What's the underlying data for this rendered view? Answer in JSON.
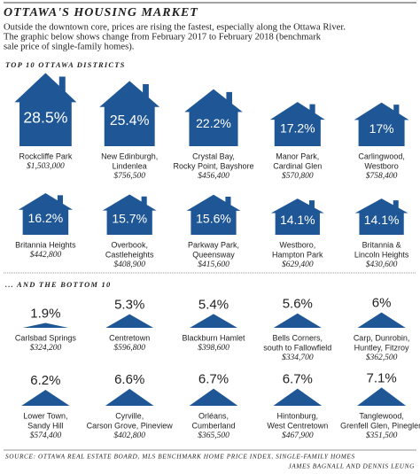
{
  "header": {
    "title": "OTTAWA'S HOUSING MARKET",
    "subtitle_lines": [
      "Outside the downtown core, prices are rising the fastest, especially along the Ottawa River.",
      "The graphic below shows change from February 2017 to February 2018 (benchmark",
      "sale price of single-family homes)."
    ]
  },
  "groups": [
    {
      "label": "TOP 10 OTTAWA DISTRICTS",
      "districts": [
        {
          "name_lines": [
            "Rockcliffe Park"
          ],
          "price": "$1,503,000",
          "value": 28.5,
          "value_label": "28.5%"
        },
        {
          "name_lines": [
            "New Edinburgh,",
            "Lindenlea"
          ],
          "price": "$756,500",
          "value": 25.4,
          "value_label": "25.4%"
        },
        {
          "name_lines": [
            "Crystal Bay,",
            "Rocky Point, Bayshore"
          ],
          "price": "$456,400",
          "value": 22.2,
          "value_label": "22.2%"
        },
        {
          "name_lines": [
            "Manor Park,",
            "Cardinal Glen"
          ],
          "price": "$570,800",
          "value": 17.2,
          "value_label": "17.2%"
        },
        {
          "name_lines": [
            "Carlingwood,",
            "Westboro"
          ],
          "price": "$758,400",
          "value": 17,
          "value_label": "17%"
        },
        {
          "name_lines": [
            "Britannia Heights"
          ],
          "price": "$442,800",
          "value": 16.2,
          "value_label": "16.2%"
        },
        {
          "name_lines": [
            "Overbook,",
            "Castleheights"
          ],
          "price": "$408,900",
          "value": 15.7,
          "value_label": "15.7%"
        },
        {
          "name_lines": [
            "Parkway Park,",
            "Queensway"
          ],
          "price": "$415,600",
          "value": 15.6,
          "value_label": "15.6%"
        },
        {
          "name_lines": [
            "Westboro,",
            "Hampton Park"
          ],
          "price": "$629,400",
          "value": 14.1,
          "value_label": "14.1%"
        },
        {
          "name_lines": [
            "Britannia &",
            "Lincoln Heights"
          ],
          "price": "$430,600",
          "value": 14.1,
          "value_label": "14.1%"
        }
      ]
    },
    {
      "label": "... AND THE BOTTOM 10",
      "districts": [
        {
          "name_lines": [
            "Carlsbad Springs"
          ],
          "price": "$324,200",
          "value": 1.9,
          "value_label": "1.9%"
        },
        {
          "name_lines": [
            "Centretown"
          ],
          "price": "$596,800",
          "value": 5.3,
          "value_label": "5.3%"
        },
        {
          "name_lines": [
            "Blackburn Hamlet"
          ],
          "price": "$398,600",
          "value": 5.4,
          "value_label": "5.4%"
        },
        {
          "name_lines": [
            "Bells Corners,",
            "south to Fallowfield"
          ],
          "price": "$334,700",
          "value": 5.6,
          "value_label": "5.6%"
        },
        {
          "name_lines": [
            "Carp, Dunrobin,",
            "Huntley, Fitzroy"
          ],
          "price": "$362,500",
          "value": 6,
          "value_label": "6%"
        },
        {
          "name_lines": [
            "Lower Town,",
            "Sandy Hill"
          ],
          "price": "$574,400",
          "value": 6.2,
          "value_label": "6.2%"
        },
        {
          "name_lines": [
            "Cyrville,",
            "Carson Grove, Pineview"
          ],
          "price": "$402,800",
          "value": 6.6,
          "value_label": "6.6%"
        },
        {
          "name_lines": [
            "Orléans,",
            "Cumberland"
          ],
          "price": "$365,500",
          "value": 6.7,
          "value_label": "6.7%"
        },
        {
          "name_lines": [
            "Hintonburg,",
            "West Centretown"
          ],
          "price": "$467,900",
          "value": 6.7,
          "value_label": "6.7%"
        },
        {
          "name_lines": [
            "Tanglewood,",
            "Grenfell Glen, Pineglen"
          ],
          "price": "$351,500",
          "value": 7.1,
          "value_label": "7.1%"
        }
      ]
    }
  ],
  "source": "SOURCE: OTTAWA REAL ESTATE BOARD, MLS BENCHMARK HOME PRICE INDEX, SINGLE-FAMILY HOMES",
  "credit": "JAMES BAGNALL AND DENNIS LEUNG"
}
